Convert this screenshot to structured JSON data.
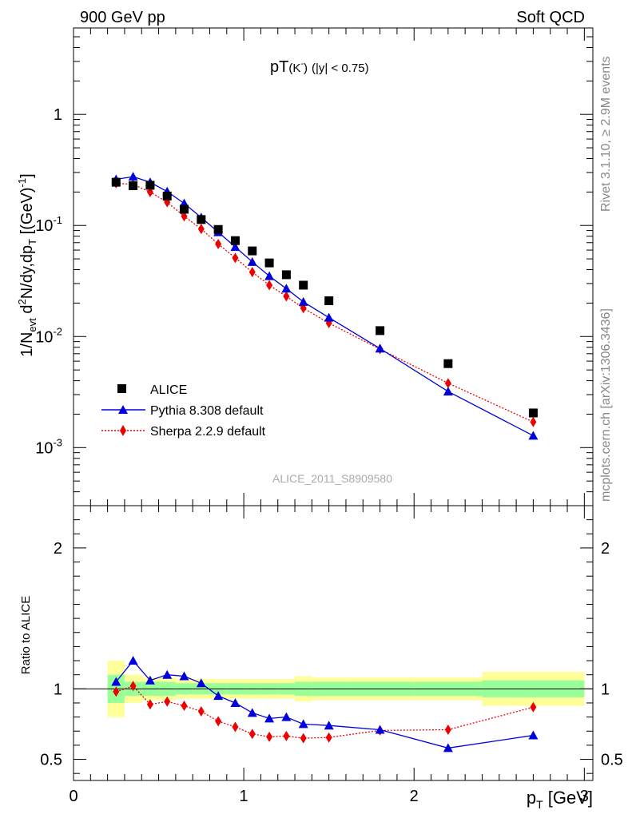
{
  "header": {
    "left": "900 GeV pp",
    "right": "Soft QCD"
  },
  "side": {
    "rivet": "Rivet 3.1.10, ≥ 2.9M events",
    "mcplots": "mcplots.cern.ch [arXiv:1306.3436]"
  },
  "chart_data": [
    {
      "type": "scatter",
      "panel": "main",
      "title_main": "pT",
      "title_particle": "(K",
      "title_particle_sup": "-",
      "title_particle_close": ")",
      "title_cut": "(|y| < 0.75)",
      "watermark": "ALICE_2011_S8909580",
      "ylabel_parts": [
        "1/N",
        "evt",
        " d",
        "2",
        "N/dy,dp",
        "T",
        " [(GeV)",
        "-1",
        "]"
      ],
      "yscale": "log",
      "ylim": [
        0.0003,
        6
      ],
      "xlim": [
        0,
        3.05
      ],
      "y_ticks": [
        {
          "value": 0.001,
          "base": "10",
          "exp": "-3"
        },
        {
          "value": 0.01,
          "base": "10",
          "exp": "-2"
        },
        {
          "value": 0.1,
          "base": "10",
          "exp": "-1"
        },
        {
          "value": 1,
          "base": "1",
          "exp": ""
        }
      ],
      "legend_position": "bottom-left",
      "series": [
        {
          "name": "ALICE",
          "color": "#000000",
          "marker": "square",
          "line": "none",
          "x": [
            0.25,
            0.35,
            0.45,
            0.55,
            0.65,
            0.75,
            0.85,
            0.95,
            1.05,
            1.15,
            1.25,
            1.35,
            1.5,
            1.8,
            2.2,
            2.7
          ],
          "y": [
            0.245,
            0.228,
            0.23,
            0.184,
            0.14,
            0.113,
            0.092,
            0.073,
            0.059,
            0.046,
            0.036,
            0.029,
            0.021,
            0.0113,
            0.0057,
            0.00205
          ]
        },
        {
          "name": "Pythia 8.308 default",
          "color": "#0000dd",
          "marker": "triangle",
          "line": "solid",
          "x": [
            0.25,
            0.35,
            0.45,
            0.55,
            0.65,
            0.75,
            0.85,
            0.95,
            1.05,
            1.15,
            1.25,
            1.35,
            1.5,
            1.8,
            2.2,
            2.7
          ],
          "y": [
            0.26,
            0.275,
            0.245,
            0.202,
            0.158,
            0.118,
            0.087,
            0.064,
            0.047,
            0.035,
            0.027,
            0.0205,
            0.0148,
            0.0078,
            0.0032,
            0.00128
          ]
        },
        {
          "name": "Sherpa 2.2.9 default",
          "color": "#ee0000",
          "marker": "diamond",
          "line": "dotted",
          "x": [
            0.25,
            0.35,
            0.45,
            0.55,
            0.65,
            0.75,
            0.85,
            0.95,
            1.05,
            1.15,
            1.25,
            1.35,
            1.5,
            1.8,
            2.2,
            2.7
          ],
          "y": [
            0.24,
            0.234,
            0.2,
            0.162,
            0.121,
            0.093,
            0.068,
            0.051,
            0.038,
            0.029,
            0.023,
            0.018,
            0.0132,
            0.0077,
            0.0038,
            0.0017
          ]
        }
      ]
    },
    {
      "type": "scatter",
      "panel": "ratio",
      "ylabel": "Ratio to ALICE",
      "xlabel_main": "p",
      "xlabel_sub": "T",
      "xlabel_unit": " [GeV]",
      "xlim": [
        0,
        3.05
      ],
      "ylim": [
        0.35,
        2.3
      ],
      "y_ticks": [
        0.5,
        1,
        2
      ],
      "x_ticks": [
        0,
        1,
        2,
        3
      ],
      "reference_line": 1,
      "bands": {
        "bins": [
          [
            0.2,
            0.3
          ],
          [
            0.3,
            0.4
          ],
          [
            0.4,
            0.5
          ],
          [
            0.5,
            0.6
          ],
          [
            0.6,
            0.7
          ],
          [
            0.7,
            0.8
          ],
          [
            0.8,
            0.9
          ],
          [
            0.9,
            1.0
          ],
          [
            1.0,
            1.1
          ],
          [
            1.1,
            1.2
          ],
          [
            1.2,
            1.3
          ],
          [
            1.3,
            1.4
          ],
          [
            1.4,
            1.6
          ],
          [
            1.6,
            2.0
          ],
          [
            2.0,
            2.4
          ],
          [
            2.4,
            3.0
          ]
        ],
        "inner": [
          0.1,
          0.05,
          0.05,
          0.05,
          0.04,
          0.04,
          0.04,
          0.04,
          0.04,
          0.04,
          0.04,
          0.05,
          0.05,
          0.05,
          0.05,
          0.06
        ],
        "outer": [
          0.2,
          0.1,
          0.08,
          0.08,
          0.07,
          0.07,
          0.07,
          0.07,
          0.07,
          0.07,
          0.07,
          0.09,
          0.08,
          0.08,
          0.08,
          0.12
        ],
        "inner_color": "#99ff99",
        "outer_color": "#ffff99"
      },
      "series": [
        {
          "name": "Pythia 8.308 default",
          "color": "#0000dd",
          "marker": "triangle",
          "line": "solid",
          "x": [
            0.25,
            0.35,
            0.45,
            0.55,
            0.65,
            0.75,
            0.85,
            0.95,
            1.05,
            1.15,
            1.25,
            1.35,
            1.5,
            1.8,
            2.2,
            2.7
          ],
          "y": [
            1.05,
            1.2,
            1.06,
            1.1,
            1.09,
            1.04,
            0.95,
            0.9,
            0.83,
            0.79,
            0.8,
            0.75,
            0.74,
            0.71,
            0.58,
            0.67
          ]
        },
        {
          "name": "Sherpa 2.2.9 default",
          "color": "#ee0000",
          "marker": "diamond",
          "line": "dotted",
          "x": [
            0.25,
            0.35,
            0.45,
            0.55,
            0.65,
            0.75,
            0.85,
            0.95,
            1.05,
            1.15,
            1.25,
            1.35,
            1.5,
            1.8,
            2.2,
            2.7
          ],
          "y": [
            0.98,
            1.02,
            0.89,
            0.91,
            0.88,
            0.84,
            0.77,
            0.73,
            0.68,
            0.66,
            0.665,
            0.65,
            0.655,
            0.705,
            0.71,
            0.87
          ]
        }
      ]
    }
  ]
}
